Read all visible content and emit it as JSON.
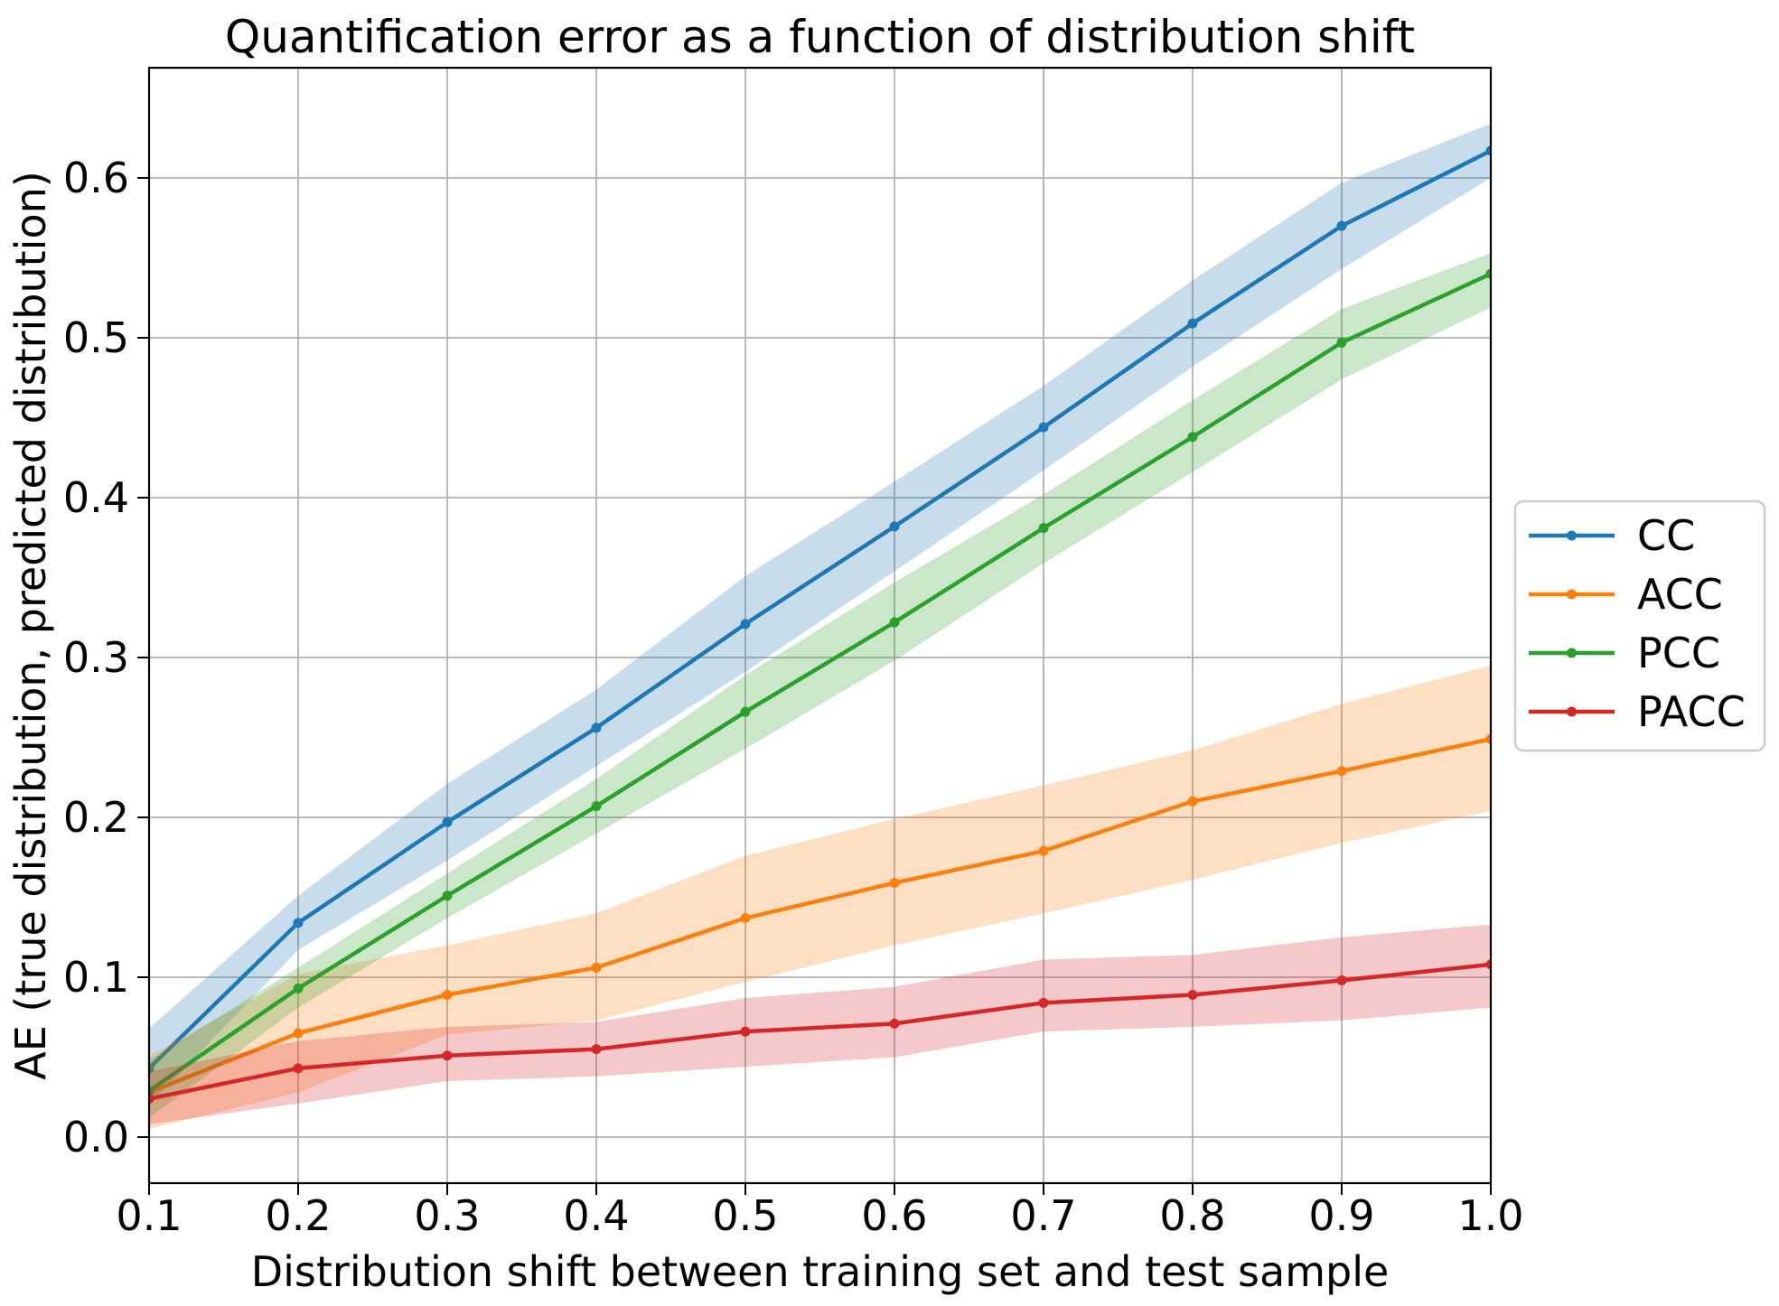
{
  "chart_data": {
    "type": "line",
    "title": "Quantification error as a function of distribution shift",
    "xlabel": "Distribution shift between training set and test sample",
    "ylabel": "AE (true distribution, predicted distribution)",
    "x": [
      0.1,
      0.2,
      0.3,
      0.4,
      0.5,
      0.6,
      0.7,
      0.8,
      0.9,
      1.0
    ],
    "xtick_labels": [
      "0.1",
      "0.2",
      "0.3",
      "0.4",
      "0.5",
      "0.6",
      "0.7",
      "0.8",
      "0.9",
      "1.0"
    ],
    "ytick_values": [
      0.0,
      0.1,
      0.2,
      0.3,
      0.4,
      0.5,
      0.6
    ],
    "ytick_labels": [
      "0.0",
      "0.1",
      "0.2",
      "0.3",
      "0.4",
      "0.5",
      "0.6"
    ],
    "xlim": [
      0.1,
      1.0
    ],
    "ylim": [
      -0.029,
      0.669
    ],
    "grid": true,
    "grid_color": "#b0b0b0",
    "background": "#ffffff",
    "band_opacity": 0.25,
    "legend_position": "outside right, vertically centered",
    "series": [
      {
        "name": "CC",
        "color": "#1f77b4",
        "marker": "circle",
        "values": [
          0.043,
          0.134,
          0.197,
          0.256,
          0.321,
          0.382,
          0.444,
          0.509,
          0.57,
          0.617
        ],
        "band_lower": [
          0.02,
          0.117,
          0.173,
          0.232,
          0.291,
          0.354,
          0.417,
          0.482,
          0.543,
          0.6
        ],
        "band_upper": [
          0.068,
          0.151,
          0.221,
          0.28,
          0.351,
          0.41,
          0.47,
          0.536,
          0.597,
          0.634
        ]
      },
      {
        "name": "ACC",
        "color": "#ff7f0e",
        "marker": "circle",
        "values": [
          0.028,
          0.065,
          0.089,
          0.106,
          0.137,
          0.159,
          0.179,
          0.21,
          0.229,
          0.249
        ],
        "band_lower": [
          0.005,
          0.028,
          0.064,
          0.073,
          0.097,
          0.12,
          0.14,
          0.161,
          0.184,
          0.204
        ],
        "band_upper": [
          0.051,
          0.102,
          0.12,
          0.14,
          0.176,
          0.199,
          0.22,
          0.242,
          0.271,
          0.295
        ]
      },
      {
        "name": "PCC",
        "color": "#2ca02c",
        "marker": "circle",
        "values": [
          0.029,
          0.093,
          0.151,
          0.207,
          0.266,
          0.322,
          0.381,
          0.438,
          0.497,
          0.54
        ],
        "band_lower": [
          0.012,
          0.081,
          0.137,
          0.19,
          0.243,
          0.298,
          0.359,
          0.416,
          0.474,
          0.519
        ],
        "band_upper": [
          0.048,
          0.106,
          0.165,
          0.224,
          0.289,
          0.347,
          0.402,
          0.461,
          0.518,
          0.553
        ]
      },
      {
        "name": "PACC",
        "color": "#d62728",
        "marker": "circle",
        "values": [
          0.024,
          0.043,
          0.051,
          0.055,
          0.066,
          0.071,
          0.084,
          0.089,
          0.098,
          0.108
        ],
        "band_lower": [
          0.008,
          0.021,
          0.035,
          0.038,
          0.044,
          0.05,
          0.066,
          0.069,
          0.073,
          0.081
        ],
        "band_upper": [
          0.041,
          0.06,
          0.069,
          0.072,
          0.087,
          0.094,
          0.111,
          0.114,
          0.125,
          0.133
        ]
      }
    ]
  }
}
